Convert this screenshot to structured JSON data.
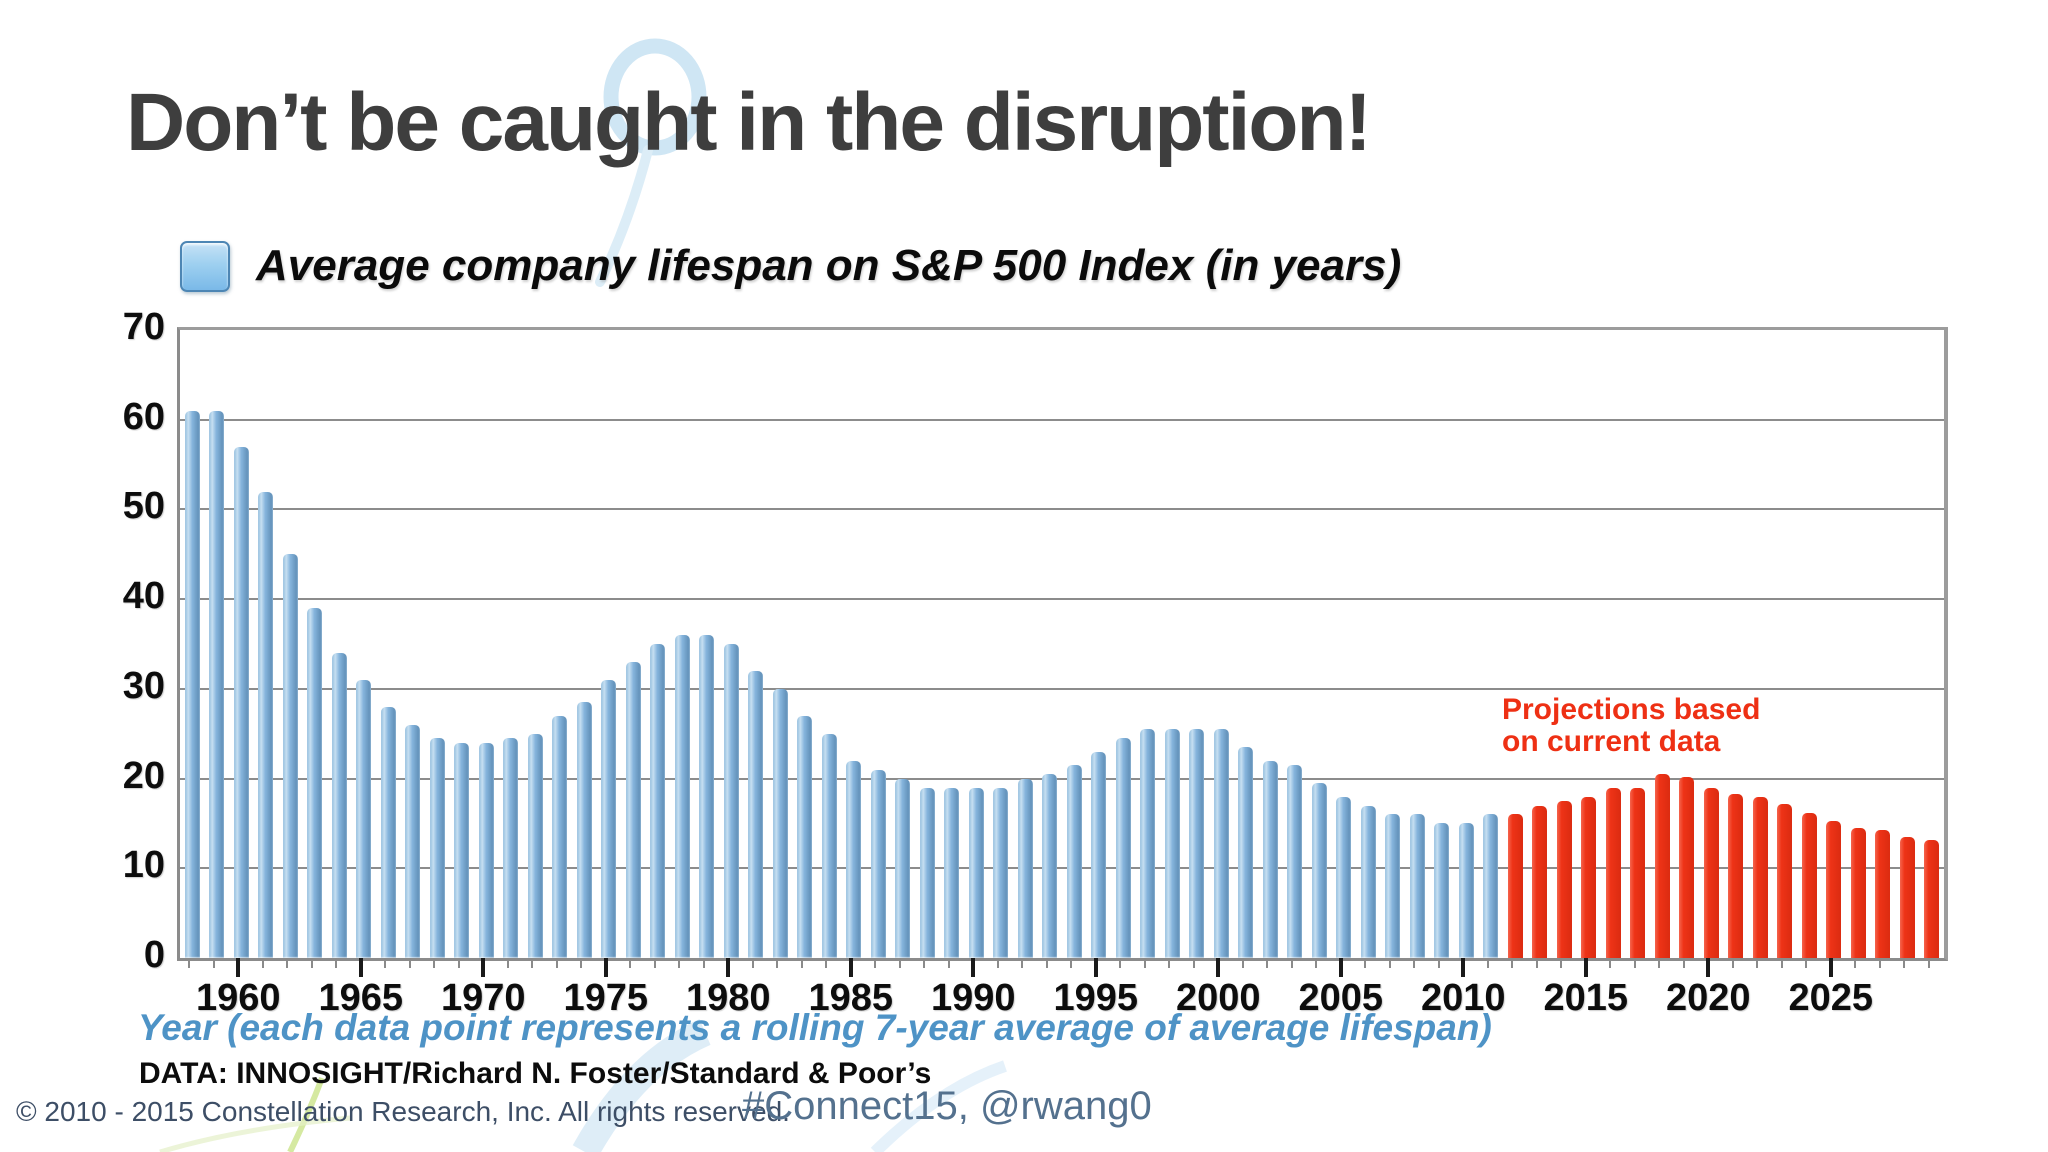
{
  "slide": {
    "title": "Don’t be caught in the disruption!",
    "legend_label": "Average company lifespan on S&P 500 Index (in years)",
    "projection_note_line1": "Projections based",
    "projection_note_line2": "on current data",
    "xaxis_caption": "Year (each data point represents a rolling 7-year average of average lifespan)",
    "source_line": "DATA: INNOSIGHT/Richard N. Foster/Standard & Poor’s",
    "footer_copyright": "© 2010 - 2015 Constellation Research, Inc.  All rights reserved.",
    "footer_social": "#Connect15, @rwang0"
  },
  "colors": {
    "title_text": "#3e3e3e",
    "actual_bar": "#7fb0d9",
    "projection_bar": "#ee3317",
    "projection_note": "#ee3014",
    "gridline": "#8c8c8c",
    "xaxis_caption": "#4e93c6",
    "footer_copyright": "#3d4e66",
    "footer_social": "#54718e"
  },
  "chart_data": {
    "type": "bar",
    "title": "Average company lifespan on S&P 500 Index (in years)",
    "xlabel": "Year (each data point represents a rolling 7-year average of average lifespan)",
    "ylabel": "",
    "ylim": [
      0,
      70
    ],
    "yticks": [
      0,
      10,
      20,
      30,
      40,
      50,
      60,
      70
    ],
    "xticks_major": [
      1960,
      1965,
      1970,
      1975,
      1980,
      1985,
      1990,
      1995,
      2000,
      2005,
      2010,
      2015,
      2020,
      2025
    ],
    "x_start_year": 1958,
    "x_end_year": 2029,
    "grid": true,
    "legend_position": "top-left",
    "series": [
      {
        "name": "Actual (blue)",
        "color": "#7fb0d9",
        "start_year": 1958,
        "values": [
          61,
          61,
          57,
          52,
          45,
          39,
          34,
          31,
          28,
          26,
          24.5,
          24,
          24,
          24.5,
          25,
          27,
          28.5,
          31,
          33,
          35,
          36,
          36,
          35,
          32,
          30,
          27,
          25,
          22,
          21,
          20,
          19,
          19,
          19,
          19,
          20,
          20.5,
          21.5,
          23,
          24.5,
          25.5,
          25.5,
          25.5,
          25.5,
          23.5,
          22,
          21.5,
          19.5,
          18,
          17,
          16,
          16,
          15,
          15,
          16
        ]
      },
      {
        "name": "Projections based on current data (red)",
        "color": "#ee3317",
        "start_year": 2012,
        "values": [
          16,
          17,
          17.5,
          18,
          19,
          19,
          20.5,
          20.2,
          19,
          18.3,
          18,
          17.2,
          16.2,
          15.3,
          14.5,
          14.3,
          13.5,
          13.2
        ]
      }
    ]
  }
}
